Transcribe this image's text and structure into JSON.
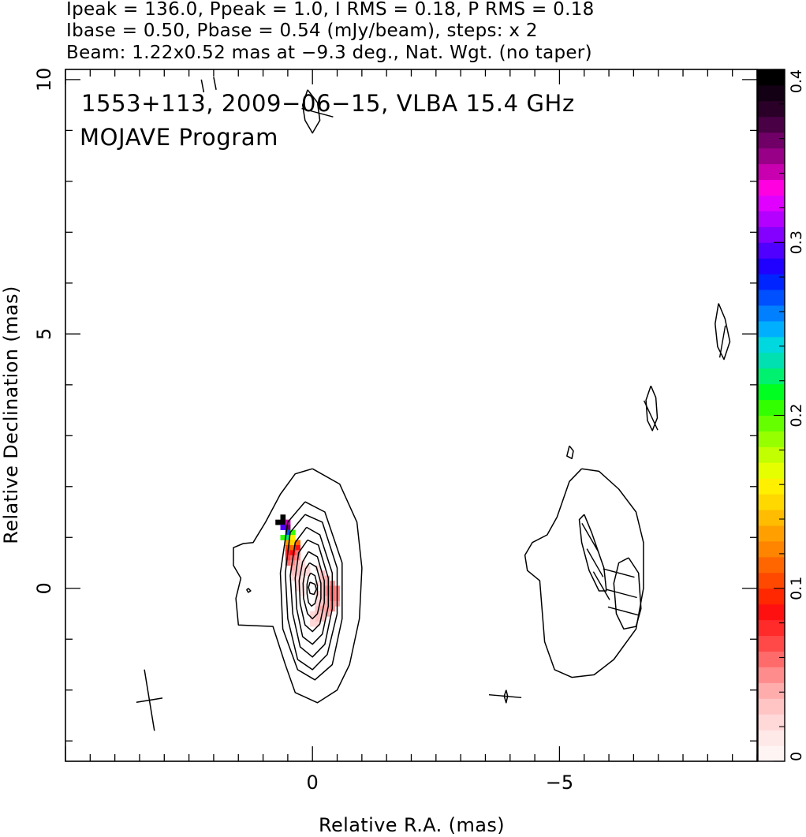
{
  "header": {
    "line1": "Ipeak = 136.0, Ppeak = 1.0, I RMS = 0.18, P RMS = 0.18",
    "line2": "Ibase = 0.50, Pbase = 0.54 (mJy/beam), steps: x 2",
    "line3": "Beam: 1.22x0.52 mas at −9.3 deg., Nat. Wgt. (no taper)"
  },
  "annotation": {
    "source_line": "1553+113, 2009−06−15, VLBA 15.4 GHz",
    "program_line": "MOJAVE Program"
  },
  "chart_data": {
    "type": "heatmap",
    "xlabel": "Relative R.A. (mas)",
    "ylabel": "Relative Declination (mas)",
    "xlim": [
      5.0,
      -9.0
    ],
    "ylim": [
      -3.4,
      10.2
    ],
    "x_axis_reversed": true,
    "x_tick_labels": [
      {
        "value": 0,
        "label": "0"
      },
      {
        "value": -5,
        "label": "−5"
      }
    ],
    "y_tick_labels": [
      {
        "value": 0,
        "label": "0"
      },
      {
        "value": 5,
        "label": "5"
      },
      {
        "value": 10,
        "label": "10"
      }
    ],
    "x_minor_step": 0.5,
    "y_minor_step": 1,
    "colorbar": {
      "range": [
        0,
        0.4
      ],
      "tick_labels": [
        {
          "value": 0,
          "label": "0"
        },
        {
          "value": 0.1,
          "label": "0.1"
        },
        {
          "value": 0.2,
          "label": "0.2"
        },
        {
          "value": 0.3,
          "label": "0.3"
        },
        {
          "value": 0.4,
          "label": "0.4"
        }
      ],
      "colors": [
        "#fff4f4",
        "#ffe8e8",
        "#ffd8d8",
        "#ffc4c4",
        "#ffacac",
        "#ff8c8c",
        "#ff6a6a",
        "#ff4848",
        "#ff2a2a",
        "#ff1010",
        "#ff2800",
        "#ff4800",
        "#ff6600",
        "#ff8400",
        "#ffa000",
        "#ffbc00",
        "#ffd800",
        "#fff000",
        "#e6ff00",
        "#c2ff00",
        "#96ff00",
        "#66ff00",
        "#32ff00",
        "#00ff20",
        "#00f070",
        "#00e0b0",
        "#00d8e0",
        "#00b0ff",
        "#0080ff",
        "#0050ff",
        "#0024ff",
        "#2000ff",
        "#5000ff",
        "#8400ff",
        "#b400ff",
        "#e000ff",
        "#ff00e0",
        "#c800b0",
        "#980088",
        "#700068",
        "#4a0044",
        "#2a0028",
        "#140014",
        "#000000"
      ]
    },
    "contours": [
      [
        [
          0.0,
          2.35
        ],
        [
          -0.55,
          2.05
        ],
        [
          -0.9,
          1.3
        ],
        [
          -1.0,
          0.4
        ],
        [
          -0.95,
          -0.6
        ],
        [
          -0.75,
          -1.5
        ],
        [
          -0.5,
          -2.0
        ],
        [
          -0.1,
          -2.25
        ],
        [
          0.35,
          -2.05
        ],
        [
          0.55,
          -1.5
        ],
        [
          0.8,
          -0.75
        ],
        [
          1.5,
          -0.72
        ],
        [
          1.55,
          -0.2
        ],
        [
          1.45,
          0.2
        ],
        [
          1.6,
          0.45
        ],
        [
          1.6,
          0.8
        ],
        [
          1.4,
          0.88
        ],
        [
          1.2,
          0.9
        ],
        [
          0.95,
          1.3
        ],
        [
          0.65,
          1.85
        ],
        [
          0.35,
          2.25
        ],
        [
          0.0,
          2.35
        ]
      ],
      [
        [
          0.15,
          1.7
        ],
        [
          -0.25,
          1.5
        ],
        [
          -0.6,
          0.5
        ],
        [
          -0.6,
          -0.6
        ],
        [
          -0.4,
          -1.5
        ],
        [
          -0.05,
          -1.8
        ],
        [
          0.3,
          -1.6
        ],
        [
          0.6,
          -0.8
        ],
        [
          0.65,
          0.3
        ],
        [
          0.5,
          1.3
        ],
        [
          0.15,
          1.7
        ]
      ],
      [
        [
          0.15,
          1.45
        ],
        [
          -0.2,
          1.3
        ],
        [
          -0.5,
          0.4
        ],
        [
          -0.5,
          -0.5
        ],
        [
          -0.3,
          -1.3
        ],
        [
          0.0,
          -1.6
        ],
        [
          0.3,
          -1.4
        ],
        [
          0.5,
          -0.6
        ],
        [
          0.55,
          0.3
        ],
        [
          0.45,
          1.1
        ],
        [
          0.15,
          1.45
        ]
      ],
      [
        [
          0.12,
          1.2
        ],
        [
          -0.15,
          1.05
        ],
        [
          -0.4,
          0.3
        ],
        [
          -0.4,
          -0.4
        ],
        [
          -0.25,
          -1.1
        ],
        [
          0.0,
          -1.35
        ],
        [
          0.25,
          -1.15
        ],
        [
          0.4,
          -0.5
        ],
        [
          0.45,
          0.25
        ],
        [
          0.35,
          0.9
        ],
        [
          0.12,
          1.2
        ]
      ],
      [
        [
          0.1,
          0.95
        ],
        [
          -0.12,
          0.85
        ],
        [
          -0.32,
          0.2
        ],
        [
          -0.32,
          -0.35
        ],
        [
          -0.2,
          -0.9
        ],
        [
          0.0,
          -1.1
        ],
        [
          0.2,
          -0.95
        ],
        [
          0.32,
          -0.4
        ],
        [
          0.35,
          0.2
        ],
        [
          0.28,
          0.7
        ],
        [
          0.1,
          0.95
        ]
      ],
      [
        [
          0.08,
          0.72
        ],
        [
          -0.1,
          0.62
        ],
        [
          -0.24,
          0.15
        ],
        [
          -0.24,
          -0.28
        ],
        [
          -0.15,
          -0.7
        ],
        [
          0.0,
          -0.85
        ],
        [
          0.15,
          -0.72
        ],
        [
          0.25,
          -0.3
        ],
        [
          0.27,
          0.15
        ],
        [
          0.2,
          0.52
        ],
        [
          0.08,
          0.72
        ]
      ],
      [
        [
          0.06,
          0.5
        ],
        [
          -0.08,
          0.42
        ],
        [
          -0.17,
          0.1
        ],
        [
          -0.17,
          -0.2
        ],
        [
          -0.1,
          -0.5
        ],
        [
          0.0,
          -0.6
        ],
        [
          0.1,
          -0.5
        ],
        [
          0.18,
          -0.2
        ],
        [
          0.19,
          0.1
        ],
        [
          0.14,
          0.38
        ],
        [
          0.06,
          0.5
        ]
      ],
      [
        [
          0.04,
          0.3
        ],
        [
          -0.05,
          0.25
        ],
        [
          -0.1,
          0.05
        ],
        [
          -0.1,
          -0.12
        ],
        [
          -0.05,
          -0.3
        ],
        [
          0.02,
          -0.35
        ],
        [
          0.08,
          -0.28
        ],
        [
          0.11,
          -0.1
        ],
        [
          0.11,
          0.08
        ],
        [
          0.08,
          0.22
        ],
        [
          0.04,
          0.3
        ]
      ],
      [
        [
          0.05,
          0.12
        ],
        [
          -0.05,
          0.08
        ],
        [
          -0.08,
          -0.02
        ],
        [
          -0.03,
          -0.12
        ],
        [
          0.05,
          -0.1
        ],
        [
          0.08,
          0.02
        ],
        [
          0.05,
          0.12
        ]
      ],
      [
        [
          -5.45,
          2.35
        ],
        [
          -5.2,
          2.1
        ],
        [
          -4.95,
          1.4
        ],
        [
          -4.75,
          1.05
        ],
        [
          -4.45,
          0.9
        ],
        [
          -4.3,
          0.65
        ],
        [
          -4.35,
          0.35
        ],
        [
          -4.6,
          0.15
        ],
        [
          -4.65,
          -0.45
        ],
        [
          -4.7,
          -1.05
        ],
        [
          -4.9,
          -1.6
        ],
        [
          -5.25,
          -1.75
        ],
        [
          -5.7,
          -1.7
        ],
        [
          -6.1,
          -1.4
        ],
        [
          -6.55,
          -0.8
        ],
        [
          -6.7,
          0.0
        ],
        [
          -6.7,
          0.9
        ],
        [
          -6.55,
          1.5
        ],
        [
          -6.2,
          1.95
        ],
        [
          -5.8,
          2.3
        ],
        [
          -5.45,
          2.35
        ]
      ],
      [
        [
          -5.5,
          1.45
        ],
        [
          -5.65,
          1.1
        ],
        [
          -5.9,
          0.4
        ],
        [
          -5.95,
          -0.05
        ],
        [
          -5.8,
          -0.05
        ],
        [
          -5.6,
          0.35
        ],
        [
          -5.45,
          0.9
        ],
        [
          -5.4,
          1.35
        ],
        [
          -5.5,
          1.45
        ]
      ],
      [
        [
          -6.4,
          0.6
        ],
        [
          -6.6,
          0.3
        ],
        [
          -6.65,
          -0.4
        ],
        [
          -6.55,
          -0.75
        ],
        [
          -6.3,
          -0.8
        ],
        [
          -6.15,
          -0.5
        ],
        [
          -6.1,
          0.1
        ],
        [
          -6.2,
          0.5
        ],
        [
          -6.4,
          0.6
        ]
      ],
      [
        [
          -8.22,
          5.6
        ],
        [
          -8.35,
          5.3
        ],
        [
          -8.45,
          4.85
        ],
        [
          -8.33,
          4.5
        ],
        [
          -8.2,
          4.75
        ],
        [
          -8.15,
          5.2
        ],
        [
          -8.22,
          5.6
        ]
      ],
      [
        [
          -6.85,
          3.98
        ],
        [
          -6.95,
          3.75
        ],
        [
          -6.98,
          3.35
        ],
        [
          -6.88,
          3.1
        ],
        [
          -6.78,
          3.3
        ],
        [
          -6.75,
          3.7
        ],
        [
          -6.85,
          3.98
        ]
      ],
      [
        [
          -5.2,
          2.8
        ],
        [
          -5.28,
          2.7
        ],
        [
          -5.25,
          2.55
        ],
        [
          -5.15,
          2.6
        ],
        [
          -5.2,
          2.8
        ]
      ],
      [
        [
          -3.92,
          -2.0
        ],
        [
          -3.95,
          -2.12
        ],
        [
          -3.92,
          -2.25
        ],
        [
          -3.88,
          -2.12
        ],
        [
          -3.92,
          -2.0
        ]
      ],
      [
        [
          1.3,
          0.0
        ],
        [
          1.25,
          -0.05
        ],
        [
          1.3,
          -0.08
        ],
        [
          1.33,
          -0.03
        ],
        [
          1.3,
          0.0
        ]
      ],
      [
        [
          0.1,
          9.8
        ],
        [
          -0.1,
          9.55
        ],
        [
          -0.15,
          9.2
        ],
        [
          0.0,
          8.95
        ],
        [
          0.15,
          9.2
        ],
        [
          0.2,
          9.5
        ],
        [
          0.1,
          9.8
        ]
      ],
      [
        [
          2.25,
          10.0
        ],
        [
          2.2,
          9.75
        ]
      ],
      [
        [
          2.0,
          10.05
        ],
        [
          1.95,
          9.8
        ]
      ]
    ],
    "polarization_pixels": [
      {
        "x": 0.6,
        "y": 1.4,
        "v": 0.4
      },
      {
        "x": 0.6,
        "y": 1.3,
        "v": 0.4
      },
      {
        "x": 0.7,
        "y": 1.3,
        "v": 0.4
      },
      {
        "x": 0.5,
        "y": 1.3,
        "v": 0.34
      },
      {
        "x": 0.6,
        "y": 1.2,
        "v": 0.3
      },
      {
        "x": 0.5,
        "y": 1.2,
        "v": 0.36
      },
      {
        "x": 0.5,
        "y": 1.1,
        "v": 0.27
      },
      {
        "x": 0.4,
        "y": 1.1,
        "v": 0.2
      },
      {
        "x": 0.6,
        "y": 1.0,
        "v": 0.2
      },
      {
        "x": 0.5,
        "y": 1.0,
        "v": 0.22
      },
      {
        "x": 0.4,
        "y": 1.0,
        "v": 0.16
      },
      {
        "x": 0.5,
        "y": 0.9,
        "v": 0.13
      },
      {
        "x": 0.4,
        "y": 0.9,
        "v": 0.15
      },
      {
        "x": 0.3,
        "y": 0.9,
        "v": 0.11
      },
      {
        "x": 0.5,
        "y": 0.8,
        "v": 0.1
      },
      {
        "x": 0.4,
        "y": 0.8,
        "v": 0.11
      },
      {
        "x": 0.3,
        "y": 0.8,
        "v": 0.09
      },
      {
        "x": 0.5,
        "y": 0.7,
        "v": 0.08
      },
      {
        "x": 0.4,
        "y": 0.7,
        "v": 0.09
      },
      {
        "x": 0.3,
        "y": 0.7,
        "v": 0.06
      },
      {
        "x": 0.5,
        "y": 0.6,
        "v": 0.07
      },
      {
        "x": 0.4,
        "y": 0.6,
        "v": 0.06
      },
      {
        "x": 0.3,
        "y": 0.6,
        "v": 0.05
      },
      {
        "x": 0.5,
        "y": 0.5,
        "v": 0.06
      },
      {
        "x": 0.4,
        "y": 0.5,
        "v": 0.05
      },
      {
        "x": 0.3,
        "y": 0.5,
        "v": 0.03
      },
      {
        "x": 0.2,
        "y": 0.5,
        "v": 0.02
      },
      {
        "x": 0.4,
        "y": 0.4,
        "v": 0.04
      },
      {
        "x": 0.3,
        "y": 0.4,
        "v": 0.03
      },
      {
        "x": 0.2,
        "y": 0.4,
        "v": 0.02
      },
      {
        "x": 0.1,
        "y": 0.4,
        "v": 0.02
      },
      {
        "x": 0.4,
        "y": 0.3,
        "v": 0.03
      },
      {
        "x": 0.3,
        "y": 0.3,
        "v": 0.03
      },
      {
        "x": 0.2,
        "y": 0.3,
        "v": 0.02
      },
      {
        "x": 0.1,
        "y": 0.3,
        "v": 0.02
      },
      {
        "x": -0.1,
        "y": 0.4,
        "v": 0.02
      },
      {
        "x": -0.2,
        "y": 0.3,
        "v": 0.03
      },
      {
        "x": -0.3,
        "y": 0.2,
        "v": 0.04
      },
      {
        "x": 0.4,
        "y": 0.2,
        "v": 0.02
      },
      {
        "x": 0.3,
        "y": 0.2,
        "v": 0.02
      },
      {
        "x": 0.2,
        "y": 0.2,
        "v": 0.01
      },
      {
        "x": -0.2,
        "y": 0.2,
        "v": 0.03
      },
      {
        "x": -0.3,
        "y": 0.1,
        "v": 0.04
      },
      {
        "x": -0.4,
        "y": 0.1,
        "v": 0.05
      },
      {
        "x": 0.3,
        "y": 0.1,
        "v": 0.02
      },
      {
        "x": 0.2,
        "y": 0.1,
        "v": 0.01
      },
      {
        "x": -0.2,
        "y": 0.1,
        "v": 0.03
      },
      {
        "x": -0.1,
        "y": 0.1,
        "v": 0.02
      },
      {
        "x": 0.3,
        "y": 0.0,
        "v": 0.02
      },
      {
        "x": 0.2,
        "y": 0.0,
        "v": 0.01
      },
      {
        "x": -0.2,
        "y": 0.0,
        "v": 0.03
      },
      {
        "x": -0.3,
        "y": 0.0,
        "v": 0.05
      },
      {
        "x": -0.4,
        "y": 0.0,
        "v": 0.06
      },
      {
        "x": -0.5,
        "y": 0.0,
        "v": 0.05
      },
      {
        "x": 0.2,
        "y": -0.1,
        "v": 0.01
      },
      {
        "x": -0.1,
        "y": -0.1,
        "v": 0.02
      },
      {
        "x": -0.2,
        "y": -0.1,
        "v": 0.03
      },
      {
        "x": -0.3,
        "y": -0.1,
        "v": 0.05
      },
      {
        "x": -0.4,
        "y": -0.1,
        "v": 0.06
      },
      {
        "x": -0.5,
        "y": -0.1,
        "v": 0.05
      },
      {
        "x": -0.1,
        "y": -0.2,
        "v": 0.02
      },
      {
        "x": -0.2,
        "y": -0.2,
        "v": 0.03
      },
      {
        "x": -0.3,
        "y": -0.2,
        "v": 0.04
      },
      {
        "x": -0.4,
        "y": -0.2,
        "v": 0.06
      },
      {
        "x": -0.5,
        "y": -0.2,
        "v": 0.05
      },
      {
        "x": -0.1,
        "y": -0.3,
        "v": 0.02
      },
      {
        "x": -0.2,
        "y": -0.3,
        "v": 0.03
      },
      {
        "x": -0.3,
        "y": -0.3,
        "v": 0.04
      },
      {
        "x": -0.4,
        "y": -0.3,
        "v": 0.05
      },
      {
        "x": -0.5,
        "y": -0.3,
        "v": 0.04
      },
      {
        "x": -0.1,
        "y": -0.4,
        "v": 0.03
      },
      {
        "x": -0.2,
        "y": -0.4,
        "v": 0.04
      },
      {
        "x": -0.3,
        "y": -0.4,
        "v": 0.04
      },
      {
        "x": -0.4,
        "y": -0.4,
        "v": 0.05
      },
      {
        "x": -0.1,
        "y": -0.5,
        "v": 0.03
      },
      {
        "x": -0.2,
        "y": -0.5,
        "v": 0.03
      },
      {
        "x": -0.3,
        "y": -0.5,
        "v": 0.04
      },
      {
        "x": -0.1,
        "y": -0.6,
        "v": 0.03
      },
      {
        "x": -0.2,
        "y": -0.6,
        "v": 0.03
      },
      {
        "x": -0.1,
        "y": -0.7,
        "v": 0.02
      },
      {
        "x": 0.0,
        "y": -0.5,
        "v": 0.02
      },
      {
        "x": 0.0,
        "y": -0.6,
        "v": 0.02
      },
      {
        "x": 0.0,
        "y": -0.7,
        "v": 0.02
      }
    ],
    "evpa_ticks": [
      {
        "x": -5.62,
        "y": 1.0,
        "angle_deg": -30
      },
      {
        "x": -5.72,
        "y": 0.5,
        "angle_deg": -30
      },
      {
        "x": -5.85,
        "y": 0.05,
        "angle_deg": -30
      },
      {
        "x": -6.2,
        "y": 0.3,
        "angle_deg": -75
      },
      {
        "x": -6.25,
        "y": -0.1,
        "angle_deg": -75
      },
      {
        "x": -6.3,
        "y": -0.45,
        "angle_deg": -75
      },
      {
        "x": -8.3,
        "y": 4.85,
        "angle_deg": 10
      },
      {
        "x": -6.85,
        "y": 3.4,
        "angle_deg": -25
      },
      {
        "x": -3.9,
        "y": -2.12,
        "angle_deg": -85
      },
      {
        "x": -0.1,
        "y": 9.35,
        "angle_deg": -75
      }
    ],
    "beam": {
      "x": 3.3,
      "y": -2.2,
      "major_mas": 1.22,
      "minor_mas": 0.52,
      "pa_deg": -9.3
    }
  }
}
